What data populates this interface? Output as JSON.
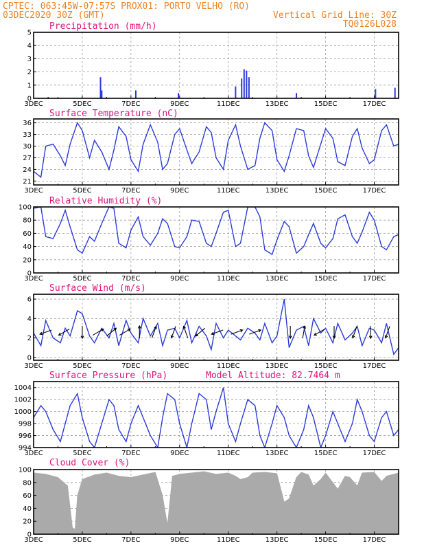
{
  "header": {
    "line1_left": "CPTEC:  063:45W-07:57S  PROX01: PORTO VELHO (RO)",
    "line2_left": "03DEC2020 30Z (GMT)",
    "line2_right": "Vertical Grid Line: 30Z",
    "line3_right": "TQ0126L028"
  },
  "colors": {
    "header": "#f08020",
    "panel_title": "#e0107a",
    "series": "#2a3ad8",
    "cloud": "#aaaaaa"
  },
  "x_ticks": [
    "3DEC",
    "5DEC",
    "7DEC",
    "9DEC",
    "11DEC",
    "13DEC",
    "15DEC",
    "17DEC"
  ],
  "chart_data": [
    {
      "type": "bar",
      "title": "Precipitation (mm/h)",
      "ylim": [
        0,
        5
      ],
      "yticks": [
        "0",
        "1",
        "2",
        "3",
        "4",
        "5"
      ],
      "x": [
        "03DEC",
        "05DEC",
        "05DEC",
        "07DEC",
        "09DEC",
        "11DEC",
        "11DEC",
        "11DEC",
        "11DEC",
        "11DEC",
        "13DEC",
        "17DEC",
        "17DEC"
      ],
      "x_day": [
        3.6,
        5.75,
        5.8,
        7.2,
        8.95,
        11.3,
        11.55,
        11.65,
        11.75,
        11.85,
        13.8,
        17.05,
        17.85
      ],
      "values": [
        0.1,
        1.6,
        0.6,
        0.6,
        0.4,
        0.9,
        1.5,
        2.2,
        2.1,
        1.6,
        0.4,
        0.7,
        0.8
      ]
    },
    {
      "type": "line",
      "title": "Surface Temperature (nC)",
      "ylim": [
        20,
        37
      ],
      "yticks": [
        "21",
        "24",
        "27",
        "30",
        "33",
        "36"
      ],
      "x_day": [
        3.0,
        3.3,
        3.5,
        3.8,
        4.1,
        4.3,
        4.5,
        4.8,
        5.0,
        5.3,
        5.5,
        5.8,
        6.1,
        6.3,
        6.5,
        6.8,
        7.0,
        7.3,
        7.5,
        7.8,
        8.1,
        8.3,
        8.5,
        8.8,
        9.0,
        9.3,
        9.5,
        9.8,
        10.1,
        10.3,
        10.5,
        10.8,
        11.0,
        11.3,
        11.5,
        11.8,
        12.1,
        12.3,
        12.5,
        12.8,
        13.0,
        13.3,
        13.5,
        13.8,
        14.1,
        14.3,
        14.5,
        14.8,
        15.0,
        15.3,
        15.5,
        15.8,
        16.1,
        16.3,
        16.5,
        16.8,
        17.0,
        17.3,
        17.5,
        17.8,
        18.0
      ],
      "values": [
        23.5,
        22.0,
        30.0,
        30.5,
        27.5,
        25.0,
        30.5,
        36.0,
        34.0,
        27.0,
        31.5,
        28.5,
        24.0,
        29.0,
        35.0,
        32.5,
        26.5,
        23.5,
        30.5,
        35.5,
        31.0,
        24.0,
        25.5,
        33.0,
        34.5,
        29.0,
        25.5,
        28.5,
        35.0,
        33.5,
        27.0,
        24.0,
        31.5,
        35.5,
        30.0,
        24.0,
        25.0,
        32.0,
        36.0,
        34.0,
        26.5,
        23.5,
        27.5,
        34.5,
        34.0,
        27.5,
        24.5,
        30.5,
        34.5,
        32.0,
        26.0,
        25.0,
        32.5,
        34.5,
        29.5,
        25.5,
        26.5,
        34.0,
        35.5,
        30.0,
        30.5
      ]
    },
    {
      "type": "line",
      "title": "Relative Humidity (%)",
      "ylim": [
        0,
        100
      ],
      "yticks": [
        "0",
        "20",
        "40",
        "60",
        "80",
        "100"
      ],
      "x_day": [
        3.0,
        3.3,
        3.5,
        3.8,
        4.1,
        4.3,
        4.5,
        4.8,
        5.0,
        5.3,
        5.5,
        5.8,
        6.1,
        6.3,
        6.5,
        6.8,
        7.0,
        7.3,
        7.5,
        7.8,
        8.1,
        8.3,
        8.5,
        8.8,
        9.0,
        9.3,
        9.5,
        9.8,
        10.1,
        10.3,
        10.5,
        10.8,
        11.0,
        11.3,
        11.5,
        11.8,
        12.1,
        12.3,
        12.5,
        12.8,
        13.0,
        13.3,
        13.5,
        13.8,
        14.1,
        14.3,
        14.5,
        14.8,
        15.0,
        15.3,
        15.5,
        15.8,
        16.1,
        16.3,
        16.5,
        16.8,
        17.0,
        17.3,
        17.5,
        17.8,
        18.0
      ],
      "values": [
        98,
        100,
        55,
        52,
        75,
        95,
        70,
        35,
        30,
        55,
        48,
        75,
        100,
        98,
        45,
        38,
        65,
        85,
        55,
        42,
        60,
        82,
        75,
        40,
        38,
        55,
        80,
        78,
        45,
        40,
        60,
        92,
        95,
        40,
        45,
        100,
        100,
        85,
        35,
        28,
        50,
        78,
        70,
        30,
        40,
        58,
        75,
        45,
        38,
        52,
        82,
        88,
        55,
        45,
        62,
        92,
        80,
        40,
        35,
        55,
        58
      ]
    },
    {
      "type": "line",
      "title": "Surface Wind (m/s)",
      "ylim": [
        -0.3,
        6.5
      ],
      "yticks": [
        "0",
        "2",
        "4",
        "6"
      ],
      "x_day": [
        3.0,
        3.3,
        3.5,
        3.8,
        4.1,
        4.3,
        4.5,
        4.8,
        5.0,
        5.3,
        5.5,
        5.8,
        6.1,
        6.3,
        6.5,
        6.8,
        7.0,
        7.3,
        7.5,
        7.8,
        8.1,
        8.3,
        8.5,
        8.8,
        9.0,
        9.3,
        9.5,
        9.8,
        10.1,
        10.3,
        10.5,
        10.8,
        11.0,
        11.3,
        11.5,
        11.8,
        12.1,
        12.3,
        12.5,
        12.8,
        13.0,
        13.3,
        13.5,
        13.8,
        14.1,
        14.3,
        14.5,
        14.8,
        15.0,
        15.3,
        15.5,
        15.8,
        16.1,
        16.3,
        16.5,
        16.8,
        17.0,
        17.3,
        17.5,
        17.8,
        18.0
      ],
      "values": [
        2.5,
        1.2,
        3.8,
        2.0,
        1.5,
        3.0,
        2.2,
        4.8,
        4.5,
        2.2,
        1.5,
        3.0,
        2.0,
        3.5,
        1.2,
        3.8,
        2.5,
        1.5,
        4.0,
        2.2,
        3.5,
        1.2,
        2.8,
        3.0,
        2.0,
        3.8,
        1.5,
        3.2,
        2.2,
        0.8,
        3.5,
        2.0,
        2.8,
        2.2,
        1.8,
        3.0,
        2.5,
        1.8,
        3.5,
        1.5,
        2.2,
        6.0,
        1.0,
        2.8,
        3.2,
        1.2,
        4.0,
        2.5,
        3.0,
        1.5,
        3.5,
        1.8,
        2.5,
        3.2,
        1.2,
        3.0,
        2.8,
        1.5,
        3.5,
        0.3,
        1.0
      ],
      "arrows_day": [
        3.5,
        4.25,
        5.0,
        5.65,
        6.2,
        6.75,
        7.35,
        7.95,
        8.75,
        9.25,
        9.85,
        10.55,
        11.35,
        12.1,
        13.55,
        14.1,
        14.75,
        15.35,
        16.2,
        16.85,
        17.55
      ],
      "arrows_deg": [
        200,
        210,
        270,
        30,
        40,
        30,
        90,
        70,
        250,
        110,
        220,
        200,
        20,
        20,
        270,
        80,
        210,
        270,
        250,
        270,
        250
      ]
    },
    {
      "type": "line",
      "title": "Surface Pressure (hPa)",
      "annotation": "Model Altitude: 82.7464 m",
      "ylim": [
        994,
        1005
      ],
      "yticks": [
        "994",
        "996",
        "998",
        "1000",
        "1002",
        "1004"
      ],
      "x_day": [
        3.0,
        3.3,
        3.5,
        3.8,
        4.1,
        4.3,
        4.5,
        4.8,
        5.0,
        5.3,
        5.5,
        5.8,
        6.1,
        6.3,
        6.5,
        6.8,
        7.0,
        7.3,
        7.5,
        7.8,
        8.1,
        8.3,
        8.5,
        8.8,
        9.0,
        9.3,
        9.5,
        9.8,
        10.1,
        10.3,
        10.5,
        10.8,
        11.0,
        11.3,
        11.5,
        11.8,
        12.1,
        12.3,
        12.5,
        12.8,
        13.0,
        13.3,
        13.5,
        13.8,
        14.1,
        14.3,
        14.5,
        14.8,
        15.0,
        15.3,
        15.5,
        15.8,
        16.1,
        16.3,
        16.5,
        16.8,
        17.0,
        17.3,
        17.5,
        17.8,
        18.0
      ],
      "values": [
        999,
        1001,
        1000,
        997,
        995,
        998,
        1001,
        1003,
        999,
        995,
        994,
        998,
        1002,
        1001,
        997,
        995,
        998,
        1001,
        999,
        996,
        994,
        999,
        1003,
        1002,
        998,
        994,
        998,
        1003,
        1002,
        997,
        1000,
        1004,
        998,
        995,
        998,
        1002,
        1001,
        996,
        994,
        998,
        1001,
        999,
        996,
        994,
        997,
        1001,
        999,
        994,
        996,
        1000,
        998,
        995,
        998,
        1002,
        1000,
        996,
        995,
        999,
        1000,
        996,
        997
      ]
    },
    {
      "type": "area",
      "title": "Cloud Cover (%)",
      "ylim": [
        0,
        100
      ],
      "yticks": [
        "0",
        "20",
        "40",
        "60",
        "80",
        "100"
      ],
      "x_day": [
        3.0,
        3.5,
        4.0,
        4.4,
        4.6,
        4.7,
        4.8,
        5.0,
        5.5,
        6.0,
        6.5,
        7.0,
        7.5,
        8.0,
        8.3,
        8.5,
        8.7,
        9.0,
        9.5,
        10.0,
        10.5,
        11.0,
        11.3,
        11.5,
        11.8,
        12.0,
        12.5,
        13.0,
        13.3,
        13.5,
        13.8,
        14.0,
        14.3,
        14.5,
        14.8,
        15.0,
        15.3,
        15.5,
        15.8,
        16.0,
        16.3,
        16.5,
        17.0,
        17.3,
        17.5,
        17.8,
        18.0
      ],
      "values": [
        95,
        93,
        88,
        75,
        10,
        8,
        60,
        85,
        92,
        95,
        90,
        88,
        92,
        96,
        60,
        15,
        90,
        93,
        95,
        97,
        93,
        95,
        90,
        85,
        88,
        95,
        96,
        94,
        50,
        55,
        88,
        96,
        92,
        75,
        85,
        95,
        80,
        70,
        90,
        88,
        75,
        95,
        96,
        82,
        90,
        93,
        95
      ]
    }
  ]
}
